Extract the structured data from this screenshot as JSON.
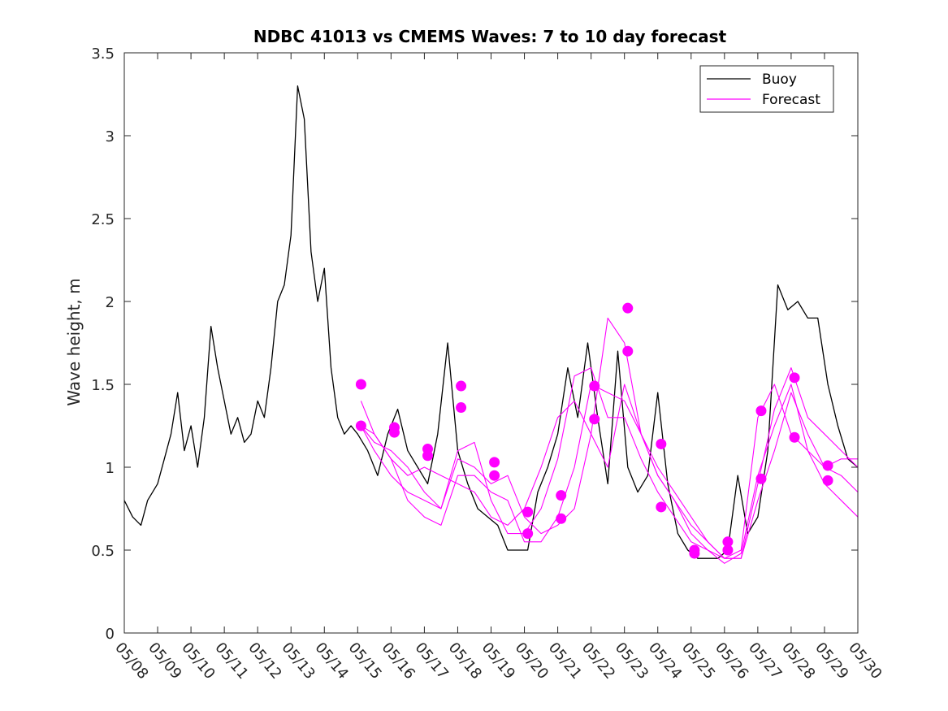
{
  "chart_data": {
    "type": "line",
    "title": "NDBC 41013 vs CMEMS Waves: 7 to 10 day forecast",
    "xlabel": "",
    "ylabel": "Wave height, m",
    "ylim": [
      0,
      3.5
    ],
    "yticks": [
      0,
      0.5,
      1,
      1.5,
      2,
      2.5,
      3,
      3.5
    ],
    "ytick_labels": [
      "0",
      "0.5",
      "1",
      "1.5",
      "2",
      "2.5",
      "3",
      "3.5"
    ],
    "x_start_date": "05/08",
    "xlim_days": [
      0,
      22
    ],
    "xtick_labels": [
      "05/08",
      "05/09",
      "05/10",
      "05/11",
      "05/12",
      "05/13",
      "05/14",
      "05/15",
      "05/16",
      "05/17",
      "05/18",
      "05/19",
      "05/20",
      "05/21",
      "05/22",
      "05/23",
      "05/24",
      "05/25",
      "05/26",
      "05/27",
      "05/28",
      "05/29",
      "05/30"
    ],
    "legend": {
      "position": "top-right",
      "entries": [
        {
          "label": "Buoy",
          "color": "#000000"
        },
        {
          "label": "Forecast",
          "color": "#ff00ff"
        }
      ]
    },
    "colors": {
      "buoy": "#000000",
      "forecast": "#ff00ff"
    },
    "series": [
      {
        "name": "Buoy",
        "x": [
          0,
          0.25,
          0.5,
          0.7,
          1,
          1.2,
          1.4,
          1.6,
          1.8,
          2,
          2.2,
          2.4,
          2.6,
          2.8,
          3,
          3.2,
          3.4,
          3.6,
          3.8,
          4,
          4.2,
          4.4,
          4.6,
          4.8,
          5,
          5.2,
          5.4,
          5.6,
          5.8,
          6,
          6.2,
          6.4,
          6.6,
          6.8,
          7,
          7.3,
          7.6,
          7.9,
          8.2,
          8.5,
          8.8,
          9.1,
          9.4,
          9.7,
          10,
          10.3,
          10.6,
          10.9,
          11.2,
          11.5,
          11.8,
          12.1,
          12.4,
          12.7,
          13,
          13.3,
          13.6,
          13.9,
          14.2,
          14.5,
          14.8,
          15.1,
          15.4,
          15.7,
          16,
          16.3,
          16.6,
          16.9,
          17.2,
          17.5,
          17.8,
          18.1,
          18.4,
          18.7,
          19,
          19.3,
          19.6,
          19.9,
          20.2,
          20.5,
          20.8,
          21.1,
          21.4,
          21.7,
          22
        ],
        "y": [
          0.8,
          0.7,
          0.65,
          0.8,
          0.9,
          1.05,
          1.2,
          1.45,
          1.1,
          1.25,
          1.0,
          1.3,
          1.85,
          1.6,
          1.4,
          1.2,
          1.3,
          1.15,
          1.2,
          1.4,
          1.3,
          1.6,
          2.0,
          2.1,
          2.4,
          3.3,
          3.1,
          2.3,
          2.0,
          2.2,
          1.6,
          1.3,
          1.2,
          1.25,
          1.2,
          1.1,
          0.95,
          1.2,
          1.35,
          1.1,
          1.0,
          0.9,
          1.2,
          1.75,
          1.1,
          0.9,
          0.75,
          0.7,
          0.65,
          0.5,
          0.5,
          0.5,
          0.85,
          1.0,
          1.2,
          1.6,
          1.3,
          1.75,
          1.3,
          0.9,
          1.7,
          1.0,
          0.85,
          0.95,
          1.45,
          0.9,
          0.6,
          0.5,
          0.45,
          0.45,
          0.45,
          0.5,
          0.95,
          0.6,
          0.7,
          1.1,
          2.1,
          1.95,
          2.0,
          1.9,
          1.9,
          1.5,
          1.25,
          1.05,
          1.0
        ]
      },
      {
        "name": "Forecast",
        "x": [
          7.1,
          7.5,
          8.0,
          8.5,
          9.0,
          9.5,
          10.0,
          10.5,
          11.0,
          11.5,
          12.0,
          12.5,
          13.0,
          13.5,
          14.0,
          14.5,
          15.0,
          15.5,
          16.0,
          16.5,
          17.0,
          17.5,
          18.0,
          18.5,
          19.0,
          19.5,
          20.0,
          20.5,
          21.0,
          21.5,
          22.0
        ],
        "y": [
          1.4,
          1.2,
          1.05,
          0.95,
          1.0,
          0.95,
          0.9,
          0.85,
          0.7,
          0.65,
          0.75,
          1.0,
          1.3,
          1.4,
          1.2,
          1.0,
          1.5,
          1.2,
          0.95,
          0.8,
          0.65,
          0.55,
          0.45,
          0.45,
          0.8,
          1.1,
          1.45,
          1.2,
          1.0,
          0.95,
          0.85
        ]
      },
      {
        "name": "",
        "x": [
          7.1,
          7.5,
          8.0,
          8.5,
          9.0,
          9.5,
          10.0,
          10.5,
          11.0,
          11.5,
          12.0,
          12.5,
          13.0,
          13.5,
          14.0,
          14.5,
          15.0,
          15.5,
          16.0,
          16.5,
          17.0,
          17.5,
          18.0,
          18.5,
          19.0,
          19.5,
          20.0,
          20.5,
          21.0,
          21.5,
          22.0
        ],
        "y": [
          1.25,
          1.15,
          1.1,
          1.0,
          0.85,
          0.75,
          1.1,
          1.15,
          0.8,
          0.6,
          0.6,
          0.75,
          1.05,
          1.55,
          1.6,
          1.3,
          1.3,
          1.05,
          0.85,
          0.7,
          0.55,
          0.5,
          0.45,
          0.5,
          1.3,
          1.5,
          1.2,
          1.1,
          1.0,
          1.05,
          1.05
        ]
      },
      {
        "name": "",
        "x": [
          7.1,
          7.5,
          8.0,
          8.5,
          9.0,
          9.5,
          10.0,
          10.5,
          11.0,
          11.5,
          12.0,
          12.5,
          13.0,
          13.5,
          14.0,
          14.5,
          15.0,
          15.5,
          16.0,
          16.5,
          17.0,
          17.5,
          18.0,
          18.5,
          19.0,
          19.5,
          20.0,
          20.5,
          21.0,
          21.5,
          22.0
        ],
        "y": [
          1.25,
          1.1,
          0.95,
          0.85,
          0.8,
          0.75,
          1.05,
          1.0,
          0.9,
          0.95,
          0.7,
          0.6,
          0.65,
          0.75,
          1.2,
          1.9,
          1.75,
          1.2,
          1.0,
          0.85,
          0.7,
          0.55,
          0.45,
          0.45,
          0.9,
          1.35,
          1.6,
          1.3,
          1.2,
          1.1,
          1.0
        ]
      },
      {
        "name": "",
        "x": [
          7.1,
          7.5,
          8.0,
          8.5,
          9.0,
          9.5,
          10.0,
          10.5,
          11.0,
          11.5,
          12.0,
          12.5,
          13.0,
          13.5,
          14.0,
          14.5,
          15.0,
          15.5,
          16.0,
          16.5,
          17.0,
          17.5,
          18.0,
          18.5,
          19.0,
          19.5,
          20.0,
          20.5,
          21.0,
          21.5,
          22.0
        ],
        "y": [
          1.25,
          1.2,
          1.05,
          0.8,
          0.7,
          0.65,
          0.95,
          0.95,
          0.85,
          0.8,
          0.55,
          0.55,
          0.7,
          1.0,
          1.5,
          1.45,
          1.4,
          1.2,
          0.95,
          0.8,
          0.6,
          0.5,
          0.42,
          0.48,
          0.95,
          1.25,
          1.5,
          1.1,
          0.9,
          0.8,
          0.7
        ]
      }
    ],
    "forecast_markers": {
      "x": [
        7.1,
        7.1,
        8.1,
        8.1,
        9.1,
        9.1,
        10.1,
        10.1,
        11.1,
        11.1,
        12.1,
        12.1,
        13.1,
        13.1,
        14.1,
        14.1,
        15.1,
        15.1,
        16.1,
        16.1,
        17.1,
        17.1,
        18.1,
        18.1,
        19.1,
        19.1,
        20.1,
        20.1,
        21.1,
        21.1
      ],
      "y": [
        1.5,
        1.25,
        1.24,
        1.21,
        1.11,
        1.07,
        1.49,
        1.36,
        1.03,
        0.95,
        0.73,
        0.6,
        0.83,
        0.69,
        1.49,
        1.29,
        1.96,
        1.7,
        1.14,
        0.76,
        0.5,
        0.48,
        0.55,
        0.5,
        1.34,
        0.93,
        1.54,
        1.18,
        1.01,
        0.92
      ]
    }
  }
}
